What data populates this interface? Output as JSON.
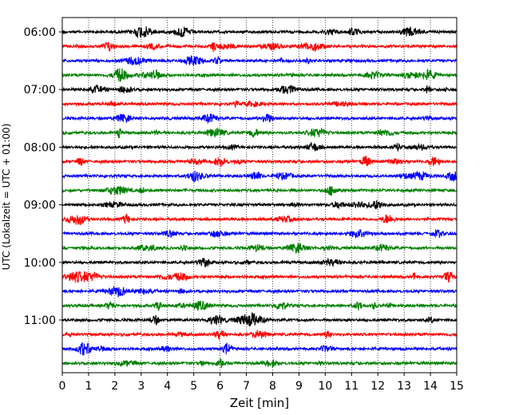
{
  "chart_data": {
    "type": "line",
    "title": "",
    "xlabel": "Zeit  [min]",
    "ylabel": "UTC (Lokalzeit = UTC + 01:00)",
    "xlim": [
      0,
      15
    ],
    "x_ticks": [
      "0",
      "1",
      "2",
      "3",
      "4",
      "5",
      "6",
      "7",
      "8",
      "9",
      "10",
      "11",
      "12",
      "13",
      "14",
      "15"
    ],
    "y_ticks": [
      "06:00",
      "07:00",
      "08:00",
      "09:00",
      "10:00",
      "11:00"
    ],
    "grid": "vertical dotted",
    "trace_colors": [
      "#000000",
      "#ff0000",
      "#0000ff",
      "#008000"
    ],
    "traces": [
      {
        "start": "06:00",
        "color": "#000000"
      },
      {
        "start": "06:15",
        "color": "#ff0000"
      },
      {
        "start": "06:30",
        "color": "#0000ff"
      },
      {
        "start": "06:45",
        "color": "#008000"
      },
      {
        "start": "07:00",
        "color": "#000000"
      },
      {
        "start": "07:15",
        "color": "#ff0000"
      },
      {
        "start": "07:30",
        "color": "#0000ff"
      },
      {
        "start": "07:45",
        "color": "#008000"
      },
      {
        "start": "08:00",
        "color": "#000000"
      },
      {
        "start": "08:15",
        "color": "#ff0000"
      },
      {
        "start": "08:30",
        "color": "#0000ff"
      },
      {
        "start": "08:45",
        "color": "#008000"
      },
      {
        "start": "09:00",
        "color": "#000000"
      },
      {
        "start": "09:15",
        "color": "#ff0000"
      },
      {
        "start": "09:30",
        "color": "#0000ff"
      },
      {
        "start": "09:45",
        "color": "#008000"
      },
      {
        "start": "10:00",
        "color": "#000000"
      },
      {
        "start": "10:15",
        "color": "#ff0000"
      },
      {
        "start": "10:30",
        "color": "#0000ff"
      },
      {
        "start": "10:45",
        "color": "#008000"
      },
      {
        "start": "11:00",
        "color": "#000000"
      },
      {
        "start": "11:15",
        "color": "#ff0000"
      },
      {
        "start": "11:30",
        "color": "#0000ff"
      },
      {
        "start": "11:45",
        "color": "#008000"
      }
    ]
  }
}
